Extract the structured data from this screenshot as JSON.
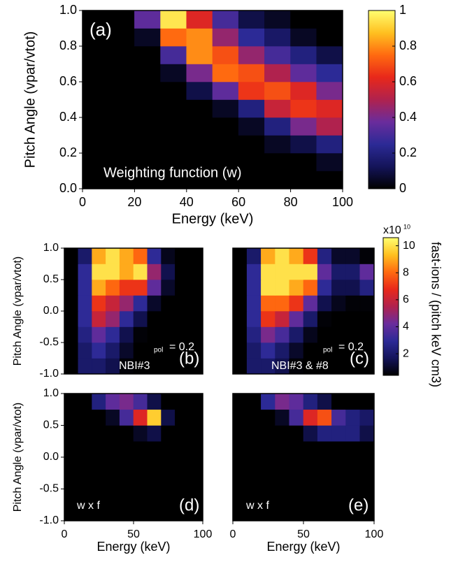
{
  "chart_data": [
    {
      "type": "heatmap",
      "label": "(a)",
      "note": "Weighting function (w)",
      "xlabel": "Energy (keV)",
      "ylabel": "Pitch Angle (vpar/vtot)",
      "xlim": [
        0,
        100
      ],
      "ylim": [
        0,
        1
      ],
      "xticks": [
        0,
        20,
        40,
        60,
        80,
        100
      ],
      "yticks": [
        {
          "value": 0,
          "label": "0.0"
        },
        0.2,
        0.4,
        0.6,
        0.8,
        {
          "value": 1,
          "label": "1.0"
        }
      ],
      "xbins": [
        0,
        10,
        20,
        30,
        40,
        50,
        60,
        70,
        80,
        90,
        100
      ],
      "ybins": [
        0,
        0.1,
        0.2,
        0.3,
        0.4,
        0.5,
        0.6,
        0.7,
        0.8,
        0.9,
        1
      ],
      "zlim": [
        0,
        1
      ],
      "z": [
        [
          0,
          0,
          0,
          0,
          0,
          0,
          0,
          0,
          0,
          0
        ],
        [
          0,
          0,
          0,
          0,
          0,
          0,
          0,
          0,
          0,
          0.05
        ],
        [
          0,
          0,
          0,
          0,
          0,
          0,
          0,
          0.05,
          0.1,
          0.2
        ],
        [
          0,
          0,
          0,
          0,
          0,
          0,
          0.05,
          0.2,
          0.4,
          0.5
        ],
        [
          0,
          0,
          0,
          0,
          0,
          0.05,
          0.2,
          0.55,
          0.65,
          0.6
        ],
        [
          0,
          0,
          0,
          0,
          0.1,
          0.35,
          0.65,
          0.7,
          0.6,
          0.4
        ],
        [
          0,
          0,
          0,
          0.05,
          0.4,
          0.75,
          0.7,
          0.5,
          0.35,
          0.25
        ],
        [
          0,
          0,
          0,
          0.3,
          0.8,
          0.7,
          0.45,
          0.3,
          0.2,
          0.1
        ],
        [
          0,
          0,
          0.05,
          0.75,
          0.8,
          0.45,
          0.25,
          0.15,
          0.05,
          0
        ],
        [
          0,
          0,
          0.35,
          0.95,
          0.6,
          0.3,
          0.1,
          0.05,
          0,
          0
        ]
      ],
      "colormap": [
        "#000000",
        "#14145a",
        "#2c2a96",
        "#6a2c9c",
        "#b0224e",
        "#e8281a",
        "#ff6a10",
        "#ffc020",
        "#ffff70"
      ],
      "colorbar": {
        "lim": [
          0,
          1
        ],
        "ticks": [
          0,
          0.2,
          0.4,
          0.6,
          0.8,
          1
        ]
      }
    },
    {
      "type": "heatmap",
      "label": "(b)",
      "note": "NBI#3",
      "rho_sub": "pol",
      "rho_text": "= 0.2",
      "ylabel": "Pitch Angle (vpar/vtot)",
      "xlim": [
        0,
        100
      ],
      "ylim": [
        -1,
        1
      ],
      "yticks": [
        {
          "value": -1,
          "label": "-1.0"
        },
        -0.5,
        {
          "value": 0,
          "label": "0.0"
        },
        0.5,
        {
          "value": 1,
          "label": "1.0"
        }
      ],
      "xbins": [
        0,
        10,
        20,
        30,
        40,
        50,
        60,
        70,
        80,
        90,
        100
      ],
      "ybins": [
        -1,
        -0.75,
        -0.5,
        -0.25,
        0,
        0.25,
        0.5,
        0.75,
        1
      ],
      "zlim": [
        0.4,
        10.6
      ],
      "z": [
        [
          0,
          2,
          2,
          1.5,
          0.5,
          0,
          0,
          0,
          0,
          0
        ],
        [
          0,
          2,
          3,
          2,
          1,
          0.3,
          0,
          0,
          0,
          0
        ],
        [
          0,
          2.5,
          4,
          3,
          1.5,
          0.5,
          0,
          0,
          0,
          0
        ],
        [
          0,
          3,
          6,
          5,
          3,
          1.5,
          0.3,
          0,
          0,
          0
        ],
        [
          0,
          3,
          7,
          6,
          5,
          3,
          1,
          0.2,
          0,
          0
        ],
        [
          0,
          3,
          9,
          8,
          7,
          7,
          4,
          1,
          0.2,
          0
        ],
        [
          0,
          3,
          10,
          10,
          9,
          10,
          5,
          1.5,
          0.3,
          0
        ],
        [
          0,
          2,
          9,
          10,
          9,
          8,
          3,
          0.8,
          0,
          0
        ]
      ],
      "colormap": [
        "#000000",
        "#14145a",
        "#2c2a96",
        "#6a2c9c",
        "#b0224e",
        "#e8281a",
        "#ff6a10",
        "#ffc020",
        "#ffff70"
      ]
    },
    {
      "type": "heatmap",
      "label": "(c)",
      "note": "NBI#3 & #8",
      "rho_sub": "pol",
      "rho_text": "= 0.2",
      "xlim": [
        0,
        100
      ],
      "ylim": [
        -1,
        1
      ],
      "xbins": [
        0,
        10,
        20,
        30,
        40,
        50,
        60,
        70,
        80,
        90,
        100
      ],
      "ybins": [
        -1,
        -0.75,
        -0.5,
        -0.25,
        0,
        0.25,
        0.5,
        0.75,
        1
      ],
      "zlim": [
        0.4,
        10.6
      ],
      "z": [
        [
          0,
          2,
          2,
          1.5,
          0.5,
          0,
          0,
          0,
          0,
          0
        ],
        [
          0,
          2,
          3,
          2,
          1,
          0.3,
          0,
          0,
          0,
          0
        ],
        [
          0,
          2.5,
          4.5,
          3.5,
          2,
          0.8,
          0.2,
          0,
          0,
          0
        ],
        [
          0,
          3,
          7,
          6,
          4,
          2,
          0.5,
          0.2,
          0,
          0
        ],
        [
          0,
          3,
          8,
          8,
          7,
          4,
          1.5,
          0.8,
          0.5,
          0.5
        ],
        [
          0,
          3,
          10,
          10,
          9,
          8,
          3,
          1.5,
          1.5,
          2.5
        ],
        [
          0,
          3,
          10,
          10,
          10,
          10,
          4,
          2,
          2,
          4
        ],
        [
          0,
          2,
          9,
          10,
          9,
          7,
          2.5,
          1,
          1,
          0.5
        ]
      ],
      "colormap": [
        "#000000",
        "#14145a",
        "#2c2a96",
        "#6a2c9c",
        "#b0224e",
        "#e8281a",
        "#ff6a10",
        "#ffc020",
        "#ffff70"
      ],
      "colorbar": {
        "lim": [
          0.4,
          10.6
        ],
        "ticks": [
          2,
          4,
          6,
          8,
          10
        ],
        "scale_base": "x10",
        "scale_exp": 10,
        "label": "fast-ions / (pitch keV cm3)"
      }
    },
    {
      "type": "heatmap",
      "label": "(d)",
      "note": "w x f",
      "xlabel": "Energy (keV)",
      "ylabel": "Pitch Angle (vpar/vtot)",
      "xlim": [
        0,
        100
      ],
      "ylim": [
        -1,
        1
      ],
      "xticks": [
        0,
        50,
        100
      ],
      "yticks": [
        {
          "value": -1,
          "label": "-1.0"
        },
        -0.5,
        {
          "value": 0,
          "label": "0.0"
        },
        0.5,
        {
          "value": 1,
          "label": "1.0"
        }
      ],
      "xbins": [
        0,
        10,
        20,
        30,
        40,
        50,
        60,
        70,
        80,
        90,
        100
      ],
      "ybins": [
        -1,
        -0.75,
        -0.5,
        -0.25,
        0,
        0.25,
        0.5,
        0.75,
        1
      ],
      "zlim": [
        0,
        1
      ],
      "z": [
        [
          0,
          0,
          0,
          0,
          0,
          0,
          0,
          0,
          0,
          0
        ],
        [
          0,
          0,
          0,
          0,
          0,
          0,
          0,
          0,
          0,
          0
        ],
        [
          0,
          0,
          0,
          0,
          0,
          0,
          0,
          0,
          0,
          0
        ],
        [
          0,
          0,
          0,
          0,
          0,
          0,
          0,
          0,
          0,
          0
        ],
        [
          0,
          0,
          0,
          0,
          0,
          0,
          0,
          0,
          0,
          0
        ],
        [
          0,
          0,
          0,
          0,
          0,
          0.05,
          0.1,
          0,
          0,
          0
        ],
        [
          0,
          0,
          0,
          0.05,
          0.3,
          0.6,
          0.9,
          0.1,
          0,
          0
        ],
        [
          0,
          0,
          0.2,
          0.35,
          0.4,
          0.3,
          0.1,
          0,
          0,
          0
        ]
      ],
      "colormap": [
        "#000000",
        "#14145a",
        "#2c2a96",
        "#6a2c9c",
        "#b0224e",
        "#e8281a",
        "#ff6a10",
        "#ffc020",
        "#ffff70"
      ]
    },
    {
      "type": "heatmap",
      "label": "(e)",
      "note": "w x f",
      "xlabel": "Energy (keV)",
      "xlim": [
        0,
        100
      ],
      "ylim": [
        -1,
        1
      ],
      "xticks": [
        0,
        50,
        100
      ],
      "xbins": [
        0,
        10,
        20,
        30,
        40,
        50,
        60,
        70,
        80,
        90,
        100
      ],
      "ybins": [
        -1,
        -0.75,
        -0.5,
        -0.25,
        0,
        0.25,
        0.5,
        0.75,
        1
      ],
      "zlim": [
        0,
        1
      ],
      "z": [
        [
          0,
          0,
          0,
          0,
          0,
          0,
          0,
          0,
          0,
          0
        ],
        [
          0,
          0,
          0,
          0,
          0,
          0,
          0,
          0,
          0,
          0
        ],
        [
          0,
          0,
          0,
          0,
          0,
          0,
          0,
          0,
          0,
          0
        ],
        [
          0,
          0,
          0,
          0,
          0,
          0,
          0,
          0,
          0,
          0
        ],
        [
          0,
          0,
          0,
          0,
          0,
          0,
          0,
          0,
          0,
          0
        ],
        [
          0,
          0,
          0,
          0,
          0,
          0.1,
          0.2,
          0.2,
          0.2,
          0.1
        ],
        [
          0,
          0,
          0,
          0.05,
          0.3,
          0.6,
          0.7,
          0.3,
          0.2,
          0.15
        ],
        [
          0,
          0,
          0.25,
          0.4,
          0.35,
          0.2,
          0.1,
          0,
          0,
          0
        ]
      ],
      "colormap": [
        "#000000",
        "#14145a",
        "#2c2a96",
        "#6a2c9c",
        "#b0224e",
        "#e8281a",
        "#ff6a10",
        "#ffc020",
        "#ffff70"
      ]
    }
  ]
}
